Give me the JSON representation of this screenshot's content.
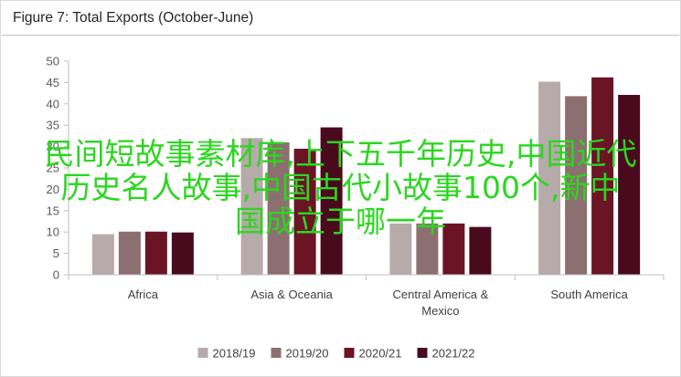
{
  "chart_data": {
    "type": "bar",
    "title": "Figure 7: Total Exports (October-June)",
    "categories": [
      "Africa",
      "Asia & Oceania",
      "Central America & Mexico",
      "South America"
    ],
    "category_lines": [
      [
        "Africa"
      ],
      [
        "Asia & Oceania"
      ],
      [
        "Central America &",
        "Mexico"
      ],
      [
        "South America"
      ]
    ],
    "series": [
      {
        "name": "2018/19",
        "color": "#b7aaaa",
        "values": [
          9.5,
          32,
          12,
          45.2
        ]
      },
      {
        "name": "2019/20",
        "color": "#8c6f70",
        "values": [
          10.1,
          31,
          12,
          41.8
        ]
      },
      {
        "name": "2020/21",
        "color": "#6a1426",
        "values": [
          10.1,
          29.5,
          12,
          46.2
        ]
      },
      {
        "name": "2021/22",
        "color": "#4a0a1e",
        "values": [
          9.9,
          34.5,
          11.2,
          42.1
        ]
      }
    ],
    "yticks": [
      0,
      5,
      10,
      15,
      20,
      25,
      30,
      35,
      40,
      45,
      50
    ],
    "ylim": [
      0,
      50
    ],
    "xlabel": "",
    "ylabel": "",
    "grid": false,
    "legend_position": "bottom"
  },
  "overlay": {
    "text": "民间短故事素材库,上下五千年历史,中国近代\n历史名人故事,中国古代小故事100个,新中\n国成立于哪一年",
    "color": "#2bd61f"
  }
}
